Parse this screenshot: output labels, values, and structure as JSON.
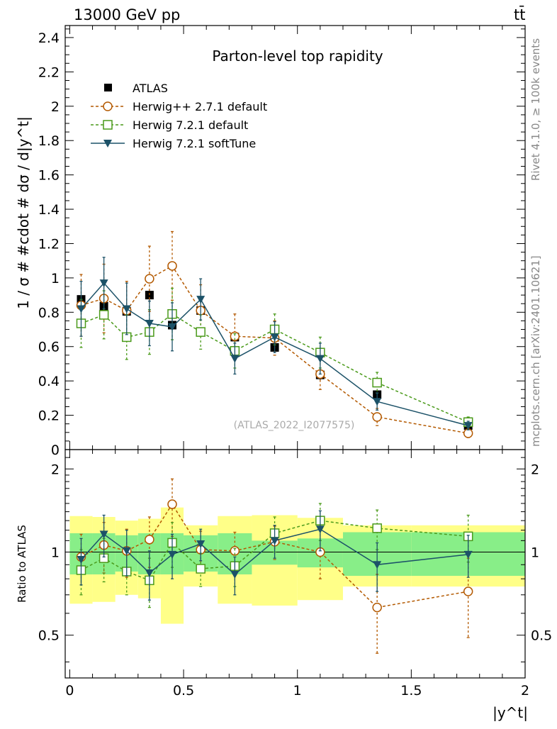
{
  "header": {
    "energy_label": "13000 GeV pp",
    "process_label": "tt̄"
  },
  "side": {
    "rivet_label": "Rivet 4.1.0, ≥ 100k events",
    "mcplots_label": "mcplots.cern.ch [arXiv:2401.10621]"
  },
  "chart_data": {
    "type": "scatter",
    "title": "Parton-level top rapidity",
    "analysis_label": "(ATLAS_2022_I2077575)",
    "xlabel": "|y^t|",
    "ylabel": "1 / σ # #cdot # dσ / d|y^t|",
    "ratio_ylabel": "Ratio to ATLAS",
    "xlim": [
      -0.02,
      2.0
    ],
    "ylim": [
      0,
      2.47
    ],
    "ratio_ylim": [
      0.35,
      2.35
    ],
    "x_ticks": [
      "0",
      "0.5",
      "1",
      "1.5",
      "2"
    ],
    "y_ticks": [
      "0",
      "0.2",
      "0.4",
      "0.6",
      "0.8",
      "1",
      "1.2",
      "1.4",
      "1.6",
      "1.8",
      "2",
      "2.2",
      "2.4"
    ],
    "ratio_ticks": [
      "0.5",
      "1",
      "2"
    ],
    "bin_edges": [
      0,
      0.1,
      0.2,
      0.3,
      0.4,
      0.5,
      0.65,
      0.8,
      1.0,
      1.2,
      1.5,
      2.0
    ],
    "x": [
      0.05,
      0.15,
      0.25,
      0.35,
      0.45,
      0.575,
      0.725,
      0.9,
      1.1,
      1.35,
      1.75
    ],
    "atlas": {
      "name": "ATLAS",
      "color": "#000000",
      "values": [
        0.875,
        0.835,
        0.805,
        0.9,
        0.725,
        0.81,
        0.655,
        0.595,
        0.435,
        0.32,
        0.14
      ],
      "band_green": [
        0.17,
        0.17,
        0.15,
        0.17,
        0.17,
        0.15,
        0.17,
        0.1,
        0.12,
        0.18,
        0.18
      ],
      "band_yellow": [
        0.35,
        0.34,
        0.3,
        0.32,
        0.45,
        0.25,
        0.35,
        0.36,
        0.33,
        0.25,
        0.25
      ]
    },
    "series": [
      {
        "name": "Herwig++ 2.7.1 default",
        "color": "#b35900",
        "marker": "circle",
        "dashed": true,
        "values": [
          0.84,
          0.88,
          0.81,
          0.995,
          1.07,
          0.81,
          0.66,
          0.65,
          0.44,
          0.19,
          0.095
        ],
        "errors": [
          0.18,
          0.2,
          0.17,
          0.19,
          0.2,
          0.15,
          0.13,
          0.1,
          0.09,
          0.05,
          0.025
        ],
        "ratio": [
          0.96,
          1.06,
          1.01,
          1.11,
          1.49,
          1.02,
          1.01,
          1.09,
          1.0,
          0.63,
          0.72
        ],
        "ratio_errors": [
          0.2,
          0.22,
          0.2,
          0.23,
          0.35,
          0.17,
          0.17,
          0.15,
          0.2,
          0.2,
          0.23
        ]
      },
      {
        "name": "Herwig 7.2.1 default",
        "color": "#4a9a1a",
        "marker": "square",
        "dashed": true,
        "values": [
          0.735,
          0.785,
          0.655,
          0.685,
          0.79,
          0.685,
          0.575,
          0.7,
          0.565,
          0.39,
          0.16
        ],
        "errors": [
          0.14,
          0.14,
          0.13,
          0.13,
          0.15,
          0.1,
          0.1,
          0.09,
          0.09,
          0.06,
          0.03
        ],
        "ratio": [
          0.86,
          0.95,
          0.85,
          0.79,
          1.08,
          0.87,
          0.89,
          1.17,
          1.3,
          1.22,
          1.14
        ],
        "ratio_errors": [
          0.16,
          0.17,
          0.15,
          0.16,
          0.2,
          0.12,
          0.14,
          0.17,
          0.2,
          0.2,
          0.22
        ]
      },
      {
        "name": "Herwig 7.2.1 softTune",
        "color": "#1c5268",
        "marker": "triangle",
        "dashed": false,
        "values": [
          0.82,
          0.97,
          0.82,
          0.735,
          0.715,
          0.875,
          0.53,
          0.655,
          0.53,
          0.28,
          0.14
        ],
        "errors": [
          0.16,
          0.15,
          0.15,
          0.13,
          0.14,
          0.12,
          0.09,
          0.09,
          0.09,
          0.05,
          0.025
        ],
        "ratio": [
          0.94,
          1.16,
          1.01,
          0.84,
          0.98,
          1.07,
          0.83,
          1.1,
          1.21,
          0.9,
          0.98
        ],
        "ratio_errors": [
          0.18,
          0.2,
          0.19,
          0.17,
          0.18,
          0.14,
          0.13,
          0.15,
          0.2,
          0.18,
          0.17
        ]
      }
    ]
  }
}
